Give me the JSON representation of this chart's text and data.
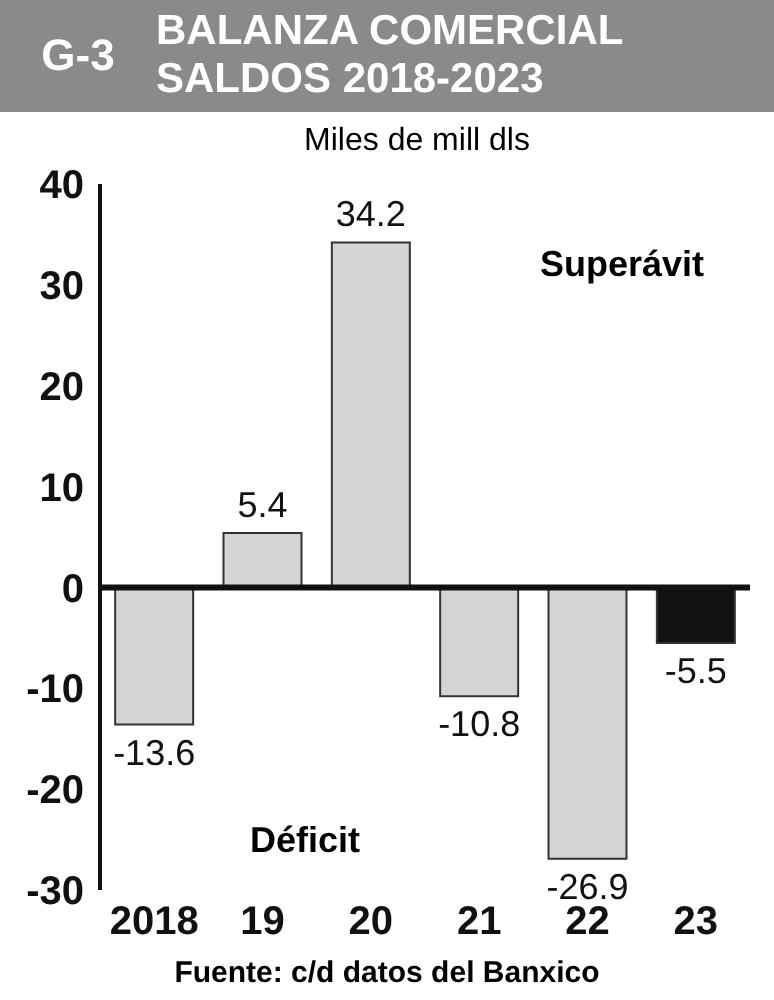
{
  "chart_data": {
    "type": "bar",
    "title": "BALANZA COMERCIAL SALDOS 2018-2023",
    "ylabel": "Miles de mill dls",
    "annotations": [
      "G-3",
      "Superávit",
      "Déficit",
      "Fuente: c/d datos del Banxico"
    ],
    "categories": [
      "2018",
      "19",
      "20",
      "21",
      "22",
      "23"
    ],
    "values": [
      -13.6,
      5.4,
      34.2,
      -10.8,
      -26.9,
      -5.5
    ],
    "colors": [
      "#d4d4d4",
      "#d4d4d4",
      "#d4d4d4",
      "#d4d4d4",
      "#d4d4d4",
      "#111111"
    ],
    "ylim": [
      -30,
      40
    ],
    "yticks": [
      -30,
      -20,
      -10,
      0,
      10,
      20,
      30,
      40
    ],
    "ref_lines": [
      {
        "axis": "y",
        "value": 0,
        "color": "#111111"
      }
    ],
    "data_labels": true
  }
}
